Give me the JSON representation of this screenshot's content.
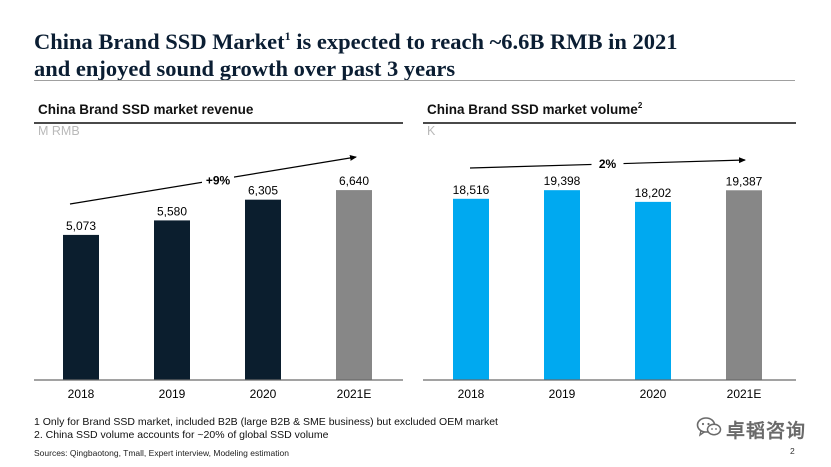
{
  "title": {
    "line1_pre": "China Brand SSD Market",
    "line1_sup": "1",
    "line1_post": " is expected to reach ~6.6B RMB in 2021",
    "line2": "and enjoyed sound growth over past 3 years"
  },
  "chart_data": [
    {
      "type": "bar",
      "title": "China Brand SSD market revenue",
      "title_sup": "",
      "unit": "M RMB",
      "categories": [
        "2018",
        "2019",
        "2020",
        "2021E"
      ],
      "values": [
        5073,
        5580,
        6305,
        6640
      ],
      "value_labels": [
        "5,073",
        "5,580",
        "6,305",
        "6,640"
      ],
      "bar_colors": [
        "#0b1e2e",
        "#0b1e2e",
        "#0b1e2e",
        "#878787"
      ],
      "growth_label": "+9%",
      "ylim": [
        0,
        8000
      ]
    },
    {
      "type": "bar",
      "title": "China Brand SSD market volume",
      "title_sup": "2",
      "unit": "K",
      "categories": [
        "2018",
        "2019",
        "2020",
        "2021E"
      ],
      "values": [
        18516,
        19398,
        18202,
        19387
      ],
      "value_labels": [
        "18,516",
        "19,398",
        "18,202",
        "19,387"
      ],
      "bar_colors": [
        "#00a9f0",
        "#00a9f0",
        "#00a9f0",
        "#878787"
      ],
      "growth_label": "2%",
      "ylim": [
        0,
        23000
      ]
    }
  ],
  "footnotes": [
    "1 Only for Brand SSD market, included B2B (large B2B & SME business) but excluded OEM market",
    "2. China SSD volume accounts for ~20% of global SSD volume"
  ],
  "sources": "Sources: Qingbaotong, Tmall, Expert interview, Modeling estimation",
  "page_number": "2",
  "brand": {
    "name": "卓韬咨询",
    "icon": "wechat-icon"
  }
}
